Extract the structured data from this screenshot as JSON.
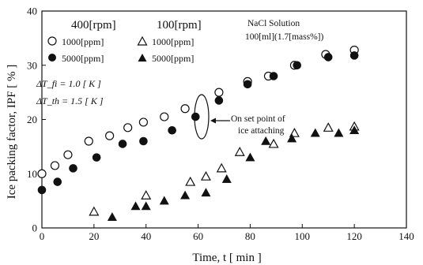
{
  "chart_data": {
    "type": "scatter",
    "xlabel": "Time, t [ min ]",
    "ylabel": "Ice packing factor, IPF [ % ]",
    "xlim": [
      0,
      140
    ],
    "ylim": [
      0,
      40
    ],
    "x_ticks": [
      0,
      20,
      40,
      60,
      80,
      100,
      120,
      140
    ],
    "y_ticks": [
      0,
      10,
      20,
      30,
      40
    ],
    "grid": false,
    "legend_groups": [
      {
        "heading": "400[rpm]",
        "items": [
          "1000[ppm]",
          "5000[ppm]"
        ]
      },
      {
        "heading": "100[rpm]",
        "items": [
          "1000[ppm]",
          "5000[ppm]"
        ]
      }
    ],
    "solution_text": [
      "NaCl Solution",
      "100[ml](1.7[mass%])"
    ],
    "conditions": [
      "ΔT_fi = 1.0 [ K ]",
      "ΔT_th = 1.5 [ K ]"
    ],
    "annotation": [
      "On set point of",
      "ice attaching"
    ],
    "series": [
      {
        "name": "400[rpm] 1000[ppm]",
        "marker": "circle-open",
        "x": [
          0,
          5,
          10,
          18,
          26,
          33,
          39,
          47,
          55,
          68,
          79,
          87,
          97,
          109,
          120
        ],
        "y": [
          10,
          11.5,
          13.5,
          16,
          17,
          18.5,
          19.5,
          20.5,
          22,
          25,
          27,
          28,
          30,
          32,
          32.8
        ]
      },
      {
        "name": "400[rpm] 5000[ppm]",
        "marker": "circle-filled",
        "x": [
          0,
          6,
          12,
          21,
          31,
          39,
          50,
          59,
          68,
          79,
          89,
          98,
          110,
          120
        ],
        "y": [
          7,
          8.5,
          11,
          13,
          15.5,
          16,
          18,
          20.5,
          23.5,
          26.5,
          28,
          30,
          31.5,
          31.8
        ]
      },
      {
        "name": "100[rpm] 1000[ppm]",
        "marker": "triangle-open",
        "x": [
          20,
          40,
          57,
          63,
          69,
          76,
          89,
          97,
          110,
          120
        ],
        "y": [
          3,
          6,
          8.5,
          9.5,
          11,
          14,
          15.5,
          17.5,
          18.5,
          18.7
        ]
      },
      {
        "name": "100[rpm] 5000[ppm]",
        "marker": "triangle-filled",
        "x": [
          27,
          36,
          40,
          47,
          55,
          63,
          71,
          80,
          86,
          96,
          105,
          114,
          120
        ],
        "y": [
          2,
          4,
          4,
          5,
          6,
          6.5,
          9,
          13,
          16,
          16.5,
          17.5,
          17.5,
          18
        ]
      }
    ]
  }
}
